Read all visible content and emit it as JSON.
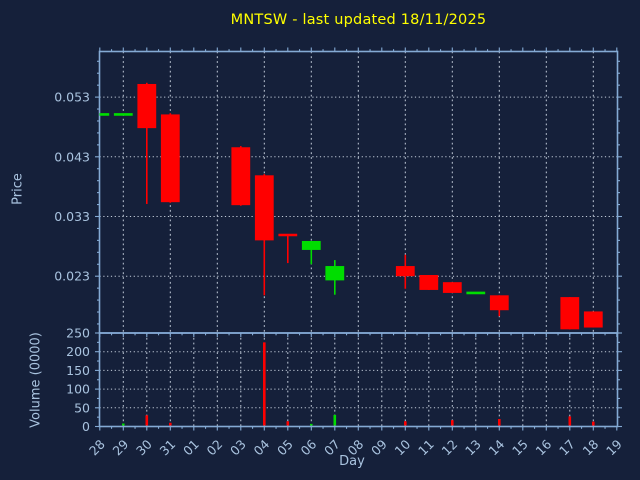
{
  "title": {
    "text": "MNTSW - last updated 18/11/2025"
  },
  "axis_labels": {
    "price": "Price",
    "volume": "Volume (0000)",
    "x": "Day"
  },
  "colors": {
    "background": "#15203a",
    "frame": "#84aad4",
    "grid": "#c2ccd9",
    "text": "#a9c3df",
    "title": "#ffff00",
    "up": "#00dd00",
    "down": "#ff0000"
  },
  "chart_data": {
    "type": "candlestick",
    "title": "MNTSW - last updated 18/11/2025",
    "xlabel": "Day",
    "ylabel_price": "Price",
    "ylabel_volume": "Volume (0000)",
    "grid": true,
    "x_categories": [
      "28",
      "29",
      "30",
      "31",
      "01",
      "02",
      "03",
      "04",
      "05",
      "06",
      "07",
      "08",
      "09",
      "10",
      "11",
      "12",
      "13",
      "14",
      "15",
      "16",
      "17",
      "18",
      "19"
    ],
    "price_axis": {
      "ticks": [
        0.023,
        0.033,
        0.043,
        0.053
      ],
      "tick_labels": [
        "0.023",
        "0.033",
        "0.043",
        "0.053"
      ],
      "minor_step": 0.002
    },
    "volume_axis": {
      "ticks": [
        0,
        50,
        100,
        150,
        200,
        250
      ],
      "tick_labels": [
        "0",
        "50",
        "100",
        "150",
        "200",
        "250"
      ],
      "minor_step": 25
    },
    "candles": [
      {
        "day": "28",
        "open": 0.0501,
        "high": 0.0501,
        "low": 0.0501,
        "close": 0.0501,
        "color": "up",
        "volume": 0
      },
      {
        "day": "29",
        "open": 0.0501,
        "high": 0.0501,
        "low": 0.0501,
        "close": 0.0501,
        "color": "up",
        "volume": 8
      },
      {
        "day": "30",
        "open": 0.0552,
        "high": 0.0554,
        "low": 0.0351,
        "close": 0.0478,
        "color": "down",
        "volume": 30
      },
      {
        "day": "31",
        "open": 0.0501,
        "high": 0.0503,
        "low": 0.0353,
        "close": 0.0354,
        "color": "down",
        "volume": 10
      },
      null,
      null,
      {
        "day": "03",
        "open": 0.0446,
        "high": 0.0448,
        "low": 0.0348,
        "close": 0.0349,
        "color": "down",
        "volume": 0
      },
      {
        "day": "04",
        "open": 0.0399,
        "high": 0.0401,
        "low": 0.0198,
        "close": 0.029,
        "color": "down",
        "volume": 225
      },
      {
        "day": "05",
        "open": 0.0299,
        "high": 0.0299,
        "low": 0.0252,
        "close": 0.0299,
        "color": "down",
        "volume": 14
      },
      {
        "day": "06",
        "open": 0.0274,
        "high": 0.0289,
        "low": 0.025,
        "close": 0.0289,
        "color": "up",
        "volume": 7
      },
      {
        "day": "07",
        "open": 0.0223,
        "high": 0.0257,
        "low": 0.0199,
        "close": 0.0247,
        "color": "up",
        "volume": 31
      },
      null,
      null,
      {
        "day": "10",
        "open": 0.0247,
        "high": 0.0266,
        "low": 0.0209,
        "close": 0.023,
        "color": "down",
        "volume": 14
      },
      {
        "day": "11",
        "open": 0.0232,
        "high": 0.0232,
        "low": 0.0207,
        "close": 0.0207,
        "color": "down",
        "volume": 0
      },
      {
        "day": "12",
        "open": 0.022,
        "high": 0.022,
        "low": 0.0202,
        "close": 0.0202,
        "color": "down",
        "volume": 17
      },
      {
        "day": "13",
        "open": 0.0202,
        "high": 0.0202,
        "low": 0.0202,
        "close": 0.0202,
        "color": "up",
        "volume": 0
      },
      {
        "day": "14",
        "open": 0.0198,
        "high": 0.0198,
        "low": 0.0163,
        "close": 0.0173,
        "color": "down",
        "volume": 20
      },
      null,
      null,
      {
        "day": "17",
        "open": 0.0195,
        "high": 0.0195,
        "low": 0.0141,
        "close": 0.0141,
        "color": "down",
        "volume": 27
      },
      {
        "day": "18",
        "open": 0.0171,
        "high": 0.0171,
        "low": 0.0144,
        "close": 0.0144,
        "color": "down",
        "volume": 13
      },
      null
    ]
  }
}
